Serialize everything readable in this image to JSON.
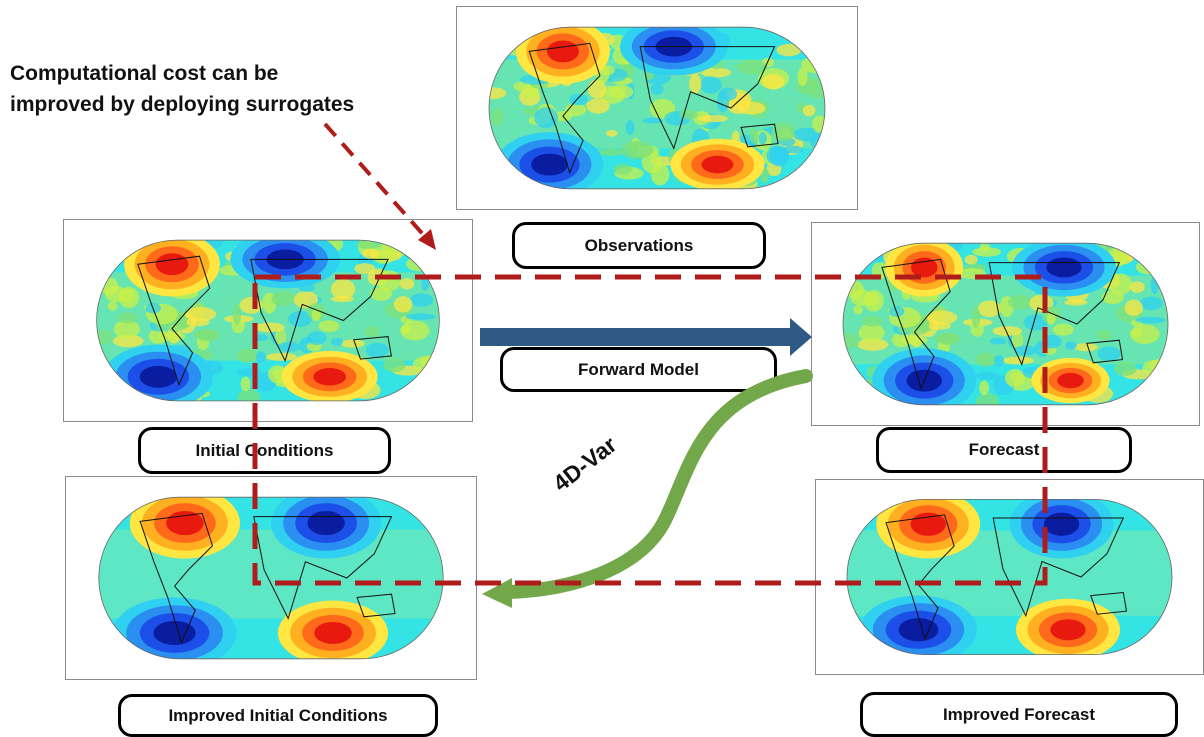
{
  "annotation": {
    "line1": "Computational cost can be",
    "line2": "improved by deploying surrogates"
  },
  "labels": {
    "observations": "Observations",
    "forward_model": "Forward Model",
    "initial_conditions": "Initial Conditions",
    "forecast": "Forecast",
    "improved_initial_conditions": "Improved Initial Conditions",
    "improved_forecast": "Improved Forecast",
    "four_d_var": "4D-Var"
  },
  "colors": {
    "dashed_box": "#b01b1b",
    "forward_arrow": "#2f5a85",
    "var_arrow": "#72a84a",
    "map_background": "#34e3e3",
    "warm_anomaly": "#ff4b1a",
    "cold_anomaly": "#1430e0"
  },
  "icons": {
    "forward_arrow": "right-arrow-icon",
    "var_arrow": "curved-arrow-icon"
  }
}
